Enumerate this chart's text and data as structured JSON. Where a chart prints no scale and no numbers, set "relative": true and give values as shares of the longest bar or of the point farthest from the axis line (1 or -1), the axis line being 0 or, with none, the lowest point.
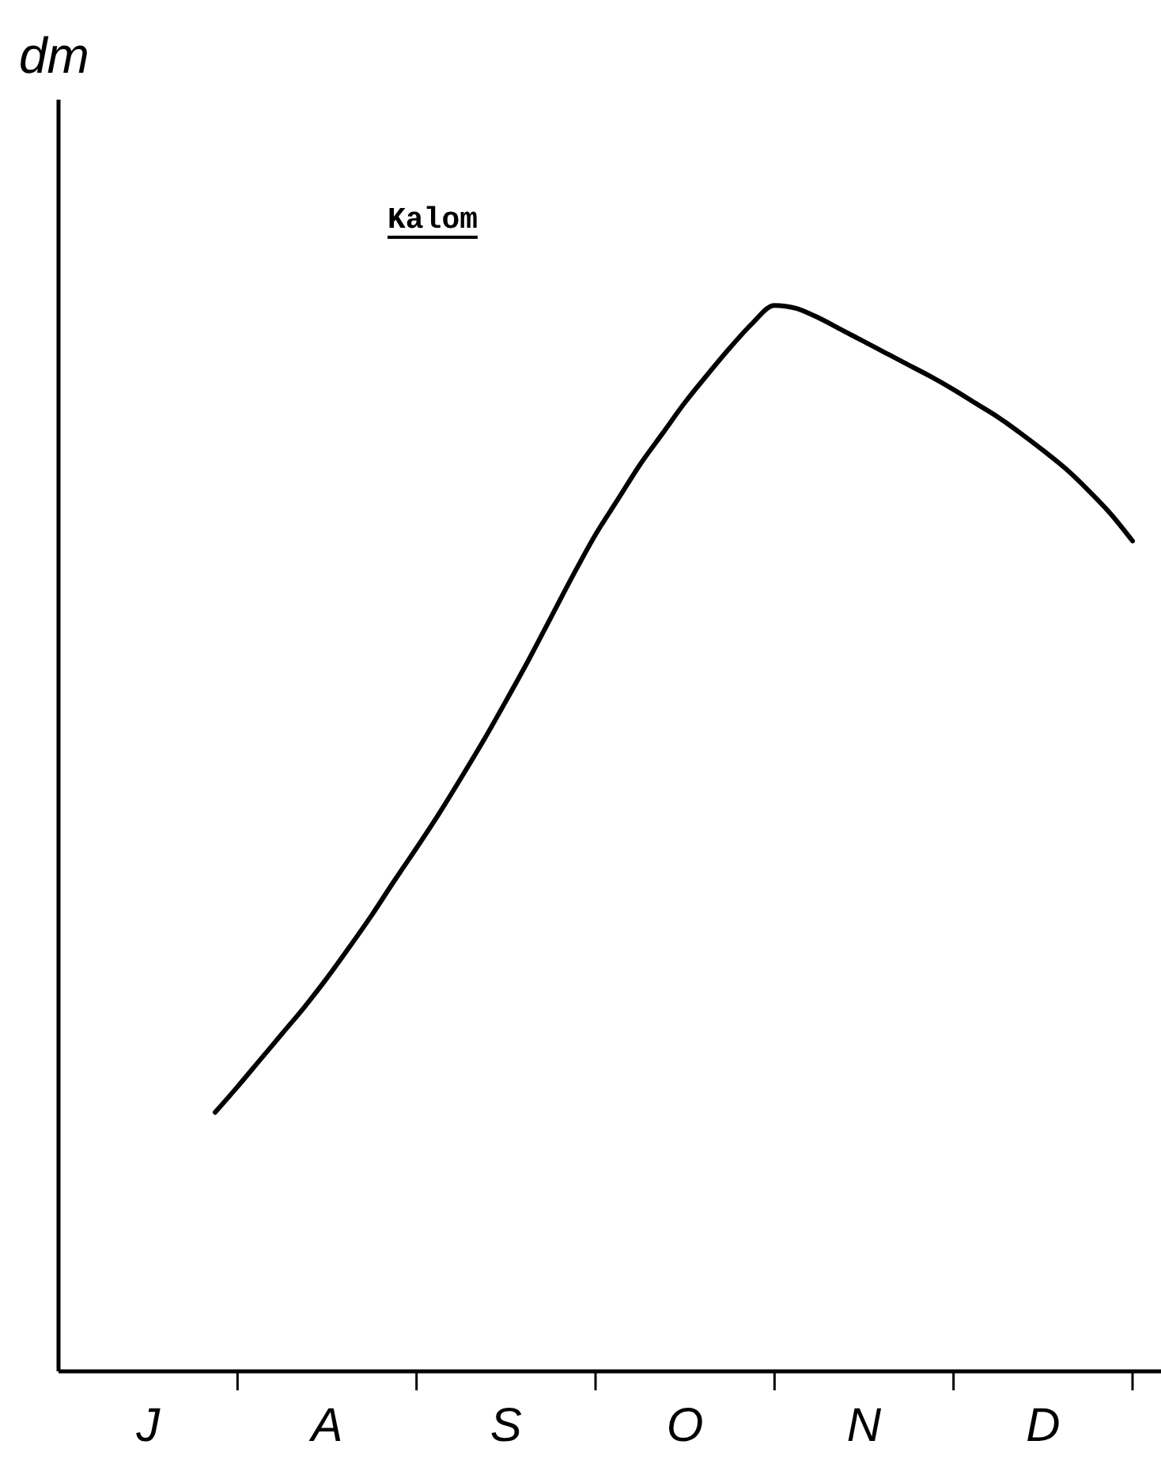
{
  "chart_data": {
    "type": "line",
    "ylabel": "dm",
    "relative": true,
    "annotations": [
      "Kalom"
    ],
    "color": "#000000",
    "categories": [
      null,
      null,
      null,
      null,
      "J",
      null,
      null,
      null,
      null,
      null,
      null,
      null,
      "A",
      null,
      null,
      null,
      null,
      null,
      null,
      null,
      "S",
      null,
      null,
      null,
      null,
      null,
      null,
      null,
      "O",
      null,
      null,
      null,
      null,
      null,
      null,
      null,
      "N",
      null,
      null,
      null,
      null,
      null,
      null,
      null,
      "D",
      null,
      null,
      null,
      null
    ],
    "values": [
      null,
      null,
      null,
      null,
      null,
      null,
      null,
      0.243,
      0.267,
      0.292,
      0.317,
      0.342,
      0.369,
      0.398,
      0.428,
      0.46,
      0.491,
      0.523,
      0.557,
      0.592,
      0.629,
      0.667,
      0.707,
      0.747,
      0.785,
      0.818,
      0.851,
      0.88,
      0.909,
      0.935,
      0.96,
      0.983,
      1,
      0.997,
      0.988,
      0.977,
      0.966,
      0.955,
      0.944,
      0.933,
      0.921,
      0.908,
      0.895,
      0.88,
      0.864,
      0.847,
      0.827,
      0.805,
      0.779
    ]
  }
}
